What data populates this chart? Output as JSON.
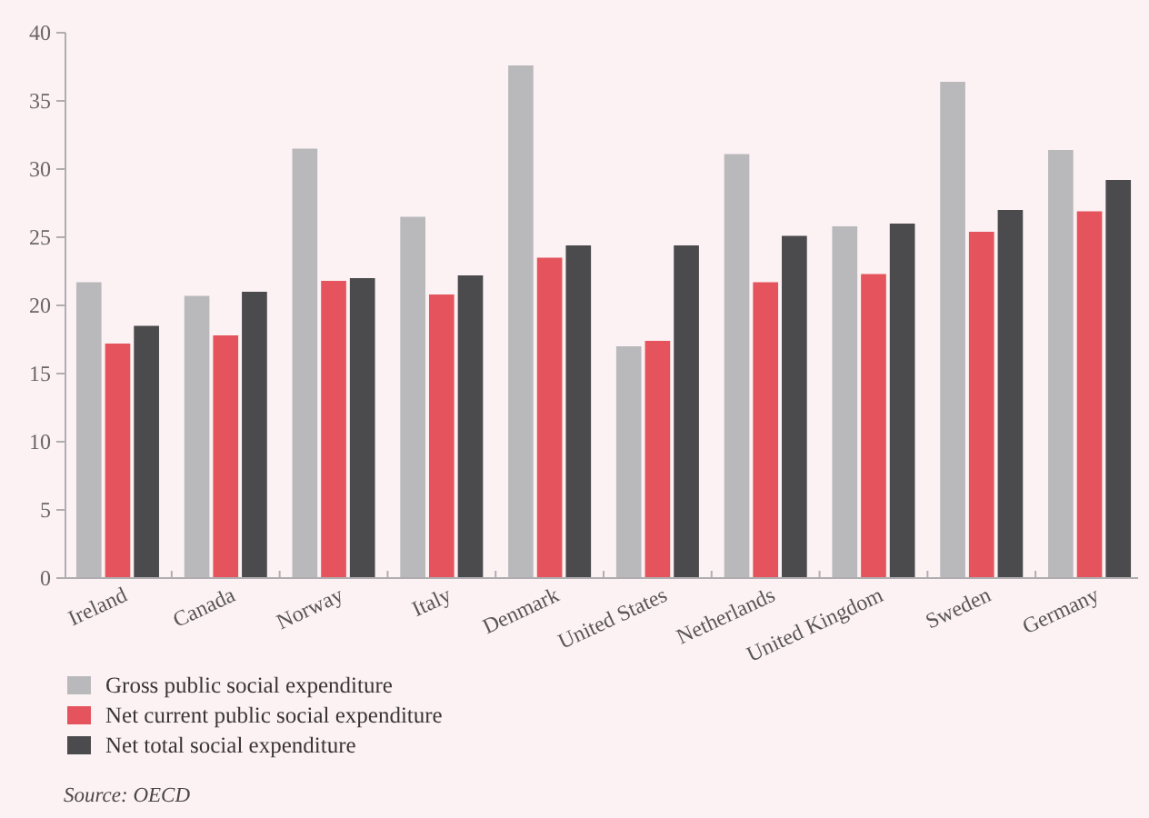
{
  "chart_data": {
    "type": "bar",
    "categories": [
      "Ireland",
      "Canada",
      "Norway",
      "Italy",
      "Denmark",
      "United States",
      "Netherlands",
      "United Kingdom",
      "Sweden",
      "Germany"
    ],
    "series": [
      {
        "name": "Gross public social expenditure",
        "color": "#b9b9bc",
        "values": [
          21.7,
          20.7,
          31.5,
          26.5,
          37.6,
          17.0,
          31.1,
          25.8,
          36.4,
          31.4
        ]
      },
      {
        "name": "Net current public social expenditure",
        "color": "#e5545c",
        "values": [
          17.2,
          17.8,
          21.8,
          20.8,
          23.5,
          17.4,
          21.7,
          22.3,
          25.4,
          26.9
        ]
      },
      {
        "name": "Net total social expenditure",
        "color": "#4b4a4d",
        "values": [
          18.5,
          21.0,
          22.0,
          22.2,
          24.4,
          24.4,
          25.1,
          26.0,
          27.0,
          29.2
        ]
      }
    ],
    "ylim": [
      0,
      40
    ],
    "yticks": [
      0,
      5,
      10,
      15,
      20,
      25,
      30,
      35,
      40
    ],
    "legend": "bottom left",
    "annotations": [
      "Source: OECD"
    ]
  }
}
